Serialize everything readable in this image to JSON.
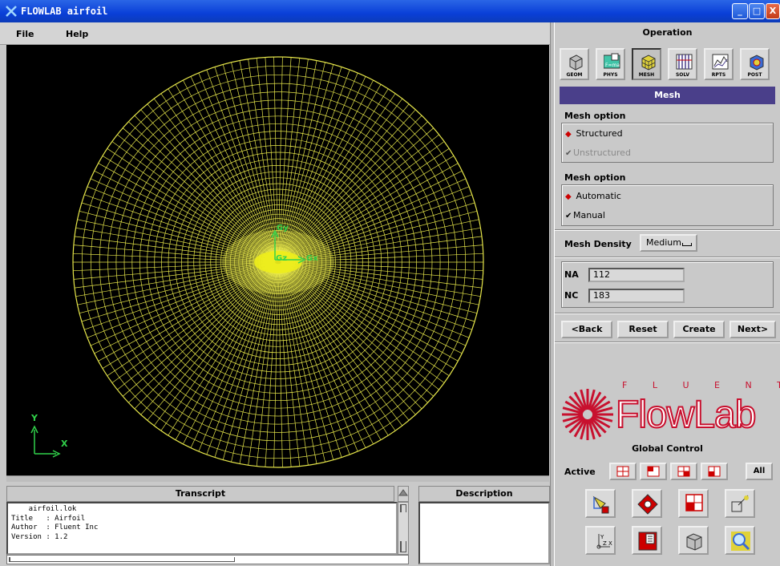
{
  "window": {
    "title": "FLOWLAB   airfoil",
    "minimize": "_",
    "maximize": "□",
    "close": "X"
  },
  "menu": {
    "file": "File",
    "help": "Help"
  },
  "viewport": {
    "axis_labels": {
      "x": "X",
      "y": "Y",
      "gx": "Gx",
      "gy": "Gy",
      "gz": "Gz"
    },
    "mesh_color": "#e6e64a",
    "background": "#000000"
  },
  "transcript": {
    "header": "Transcript",
    "lines": [
      "    airfoil.lok",
      "Title   : Airfoil",
      "Author  : Fluent Inc",
      "Version : 1.2"
    ]
  },
  "description": {
    "header": "Description"
  },
  "operation": {
    "title": "Operation",
    "buttons": [
      {
        "label": "GEOM",
        "icon": "geometry-cube-icon"
      },
      {
        "label": "PHYS",
        "icon": "physics-icon"
      },
      {
        "label": "MESH",
        "icon": "mesh-cube-icon",
        "active": true
      },
      {
        "label": "SOLV",
        "icon": "solver-icon"
      },
      {
        "label": "RPTS",
        "icon": "reports-chart-icon"
      },
      {
        "label": "POST",
        "icon": "post-processing-icon"
      }
    ]
  },
  "mesh": {
    "header": "Mesh",
    "option1": {
      "label": "Mesh option",
      "structured": "Structured",
      "unstructured": "Unstructured"
    },
    "option2": {
      "label": "Mesh option",
      "automatic": "Automatic",
      "manual": "Manual"
    },
    "density": {
      "label": "Mesh Density",
      "value": "Medium"
    },
    "na": {
      "label": "NA",
      "value": "112"
    },
    "nc": {
      "label": "NC",
      "value": "183"
    },
    "actions": {
      "back": "<Back",
      "reset": "Reset",
      "create": "Create",
      "next": "Next>"
    }
  },
  "logo": {
    "letters": "F  L  U  E  N  T",
    "word": "FlowLab",
    "color": "#c8102e"
  },
  "global_control": {
    "title": "Global Control",
    "active_label": "Active",
    "all_label": "All"
  }
}
